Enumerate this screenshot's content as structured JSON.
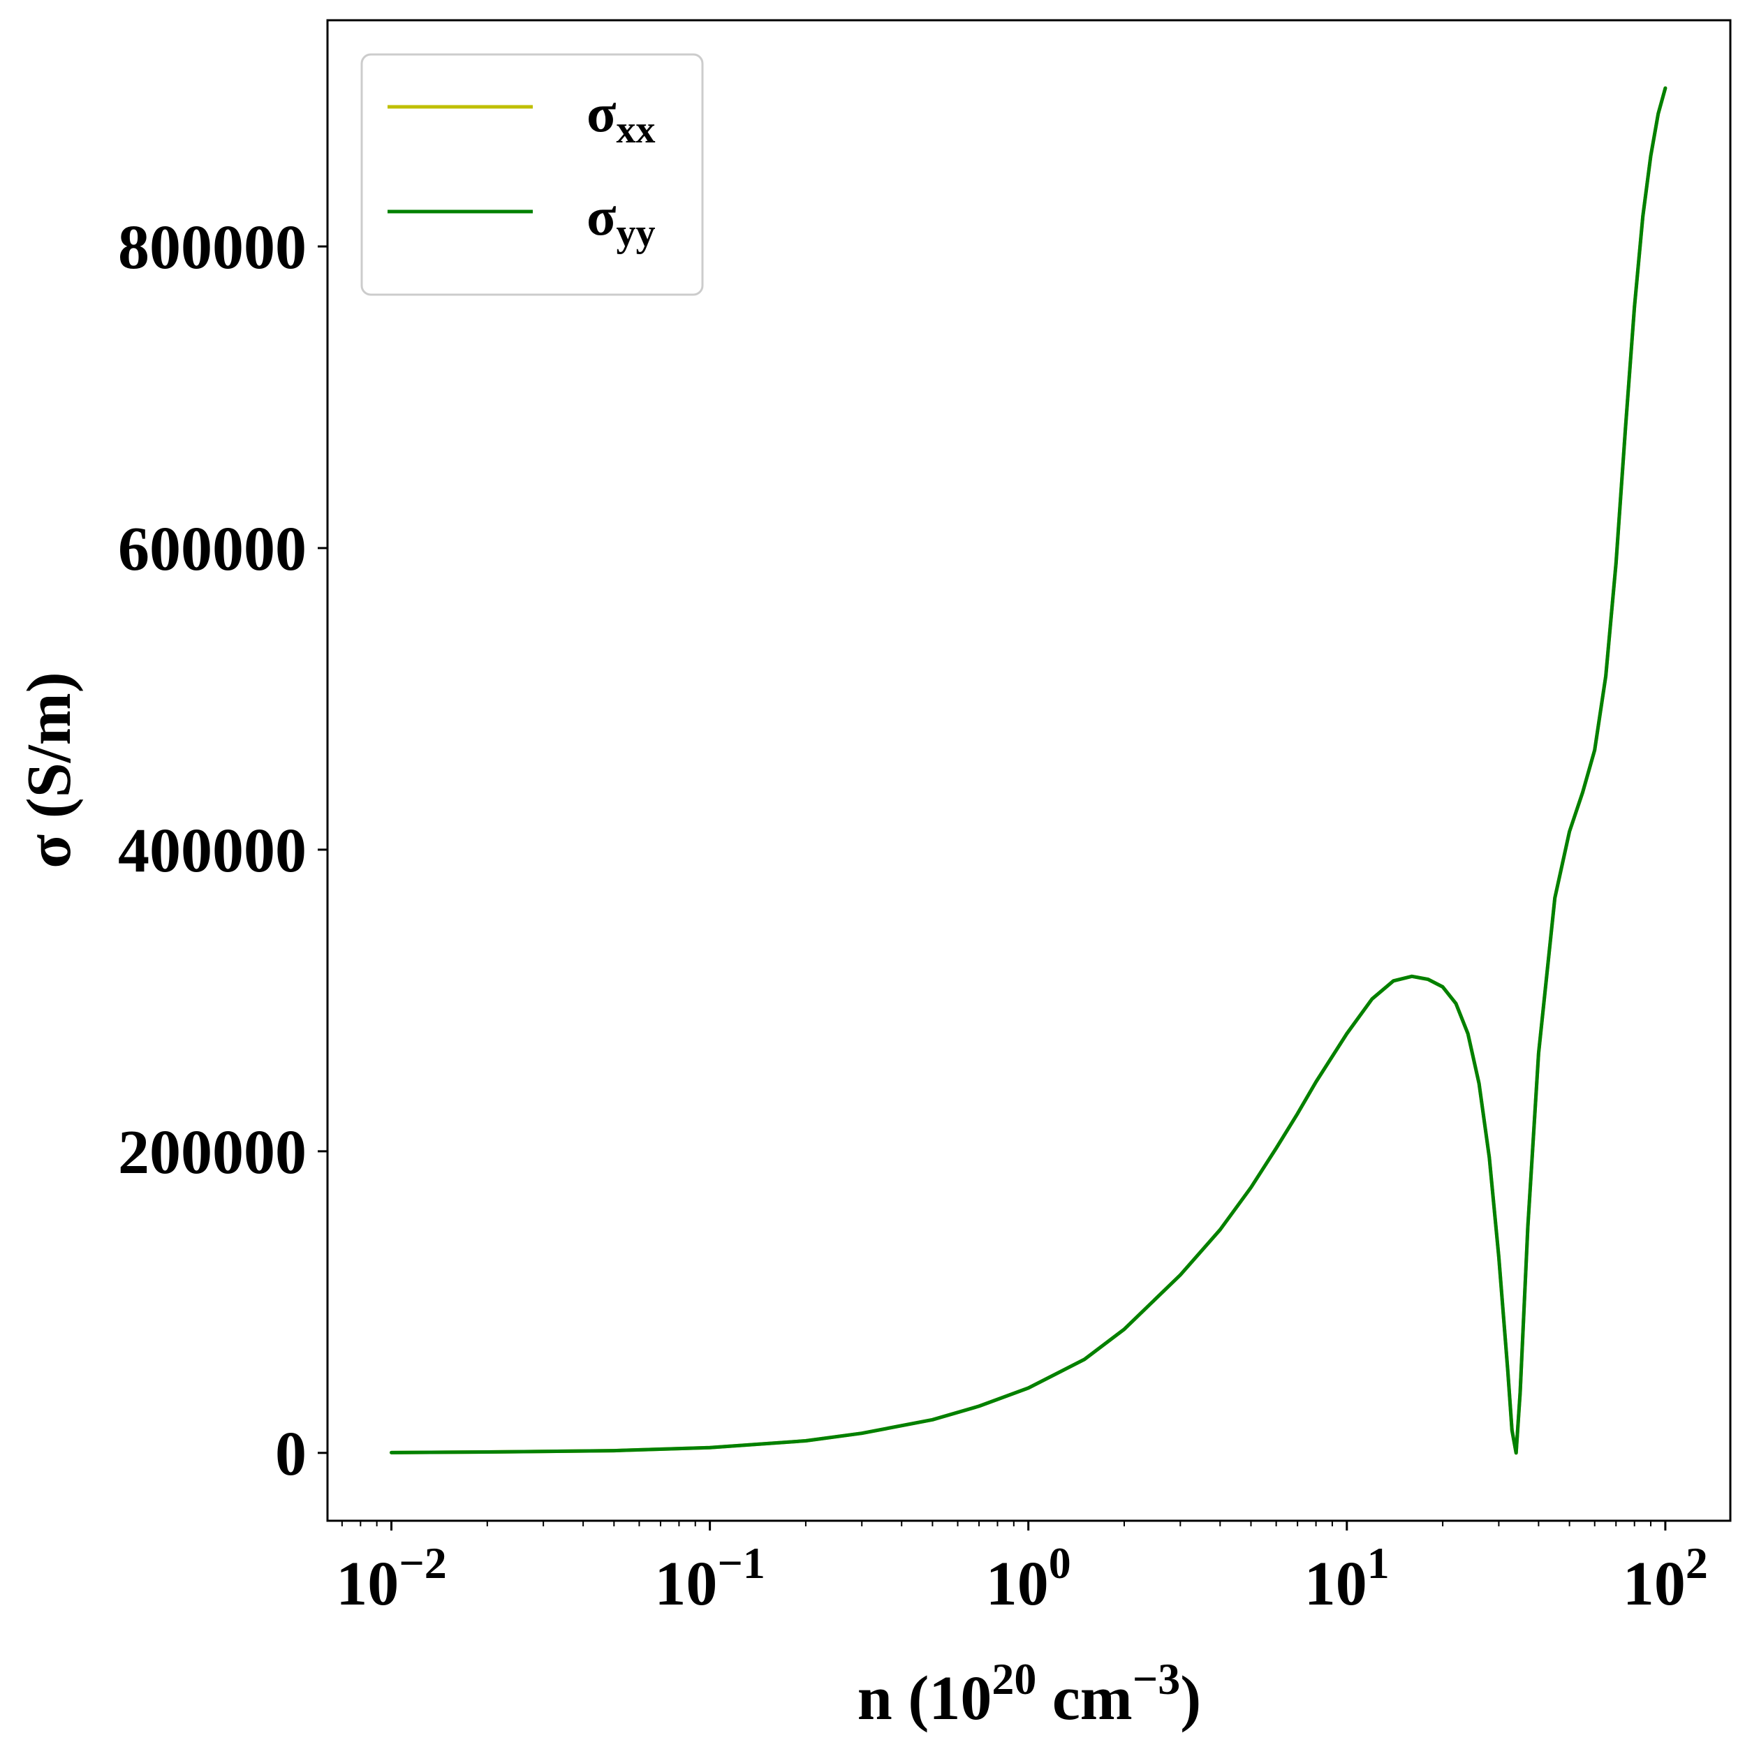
{
  "chart_data": {
    "type": "line",
    "title": "",
    "xlabel": {
      "base": "n (10",
      "sup1": "20",
      "mid": " cm",
      "sup2": "−3",
      "end": ")"
    },
    "ylabel": "σ (S/m)",
    "xscale": "log",
    "xlim": [
      0.0063,
      160
    ],
    "ylim": [
      -45000,
      950000
    ],
    "grid": false,
    "legend_position": "top-left",
    "x_ticks": [
      {
        "value": 0.01,
        "base": "10",
        "exp": "−2"
      },
      {
        "value": 0.1,
        "base": "10",
        "exp": "−1"
      },
      {
        "value": 1,
        "base": "10",
        "exp": "0"
      },
      {
        "value": 10,
        "base": "10",
        "exp": "1"
      },
      {
        "value": 100,
        "base": "10",
        "exp": "2"
      }
    ],
    "y_ticks": [
      {
        "value": 0,
        "label": "0"
      },
      {
        "value": 200000,
        "label": "200000"
      },
      {
        "value": 400000,
        "label": "400000"
      },
      {
        "value": 600000,
        "label": "600000"
      },
      {
        "value": 800000,
        "label": "800000"
      }
    ],
    "x": [
      0.01,
      0.02,
      0.05,
      0.1,
      0.2,
      0.3,
      0.5,
      0.7,
      1.0,
      1.5,
      2.0,
      3.0,
      4.0,
      5.0,
      6.0,
      7.0,
      8.0,
      10.0,
      12.0,
      14.0,
      16.0,
      18.0,
      20.0,
      22.0,
      24.0,
      26.0,
      28.0,
      30.0,
      32.0,
      33.0,
      34.0,
      35.0,
      37.0,
      40.0,
      45.0,
      50.0,
      55.0,
      60.0,
      65.0,
      70.0,
      75.0,
      80.0,
      85.0,
      90.0,
      95.0,
      100.0
    ],
    "series": [
      {
        "name": {
          "base": "σ",
          "sub": "xx"
        },
        "color": "#bfbf00",
        "values": [
          200,
          600,
          1500,
          3500,
          8000,
          13000,
          22000,
          31000,
          43000,
          62000,
          82000,
          118000,
          148000,
          176000,
          202000,
          225000,
          246000,
          278000,
          301000,
          313000,
          316000,
          314000,
          309000,
          298000,
          278000,
          245000,
          196000,
          130000,
          55000,
          15000,
          0,
          40000,
          150000,
          265000,
          368000,
          412000,
          438000,
          466000,
          515000,
          590000,
          680000,
          760000,
          820000,
          860000,
          888000,
          905000
        ]
      },
      {
        "name": {
          "base": "σ",
          "sub": "yy"
        },
        "color": "#008000",
        "values": [
          200,
          600,
          1500,
          3500,
          8000,
          13000,
          22000,
          31000,
          43000,
          62000,
          82000,
          118000,
          148000,
          176000,
          202000,
          225000,
          246000,
          278000,
          301000,
          313000,
          316000,
          314000,
          309000,
          298000,
          278000,
          245000,
          196000,
          130000,
          55000,
          15000,
          0,
          40000,
          150000,
          265000,
          368000,
          412000,
          438000,
          466000,
          515000,
          590000,
          680000,
          760000,
          820000,
          860000,
          888000,
          905000
        ]
      }
    ]
  }
}
